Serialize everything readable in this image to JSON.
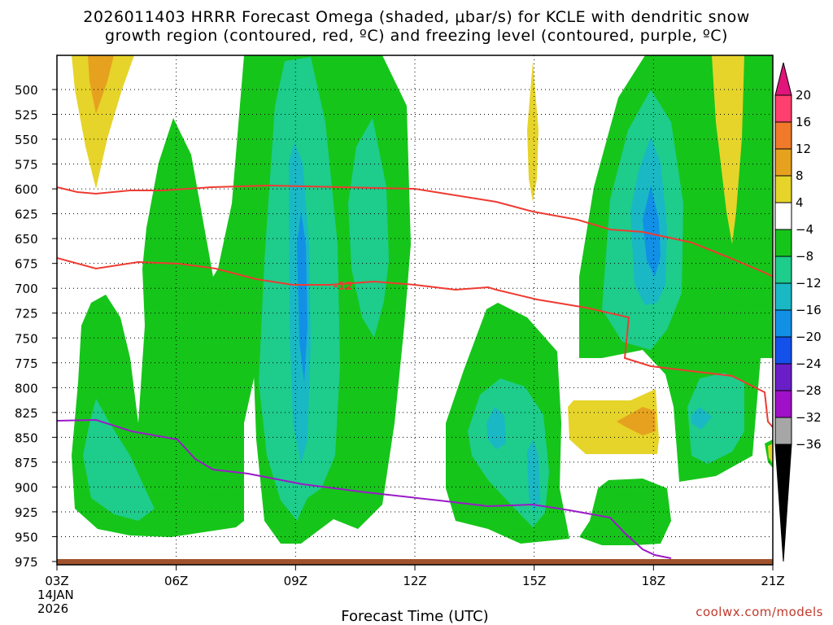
{
  "chart_data": {
    "type": "heatmap",
    "title_line1": "2026011403 HRRR Forecast Omega (shaded, μbar/s) for KCLE with dendritic snow",
    "title_line2": "growth region (contoured, red, ºC) and freezing level (contoured, purple, ºC)",
    "xlabel": "Forecast Time (UTC)",
    "x_ticks": [
      "03Z",
      "06Z",
      "09Z",
      "12Z",
      "15Z",
      "18Z",
      "21Z"
    ],
    "x_tick_hours": [
      3,
      6,
      9,
      12,
      15,
      18,
      21
    ],
    "xlim": [
      3,
      21
    ],
    "date_line1": "14JAN",
    "date_line2": "2026",
    "y_ticks": [
      500,
      525,
      550,
      575,
      600,
      625,
      650,
      675,
      700,
      725,
      750,
      775,
      800,
      825,
      850,
      875,
      900,
      925,
      950,
      975
    ],
    "ylim": [
      475,
      985
    ],
    "contour_label": "-12",
    "colorbar": {
      "labels": [
        "20",
        "16",
        "12",
        "8",
        "4",
        "−4",
        "−8",
        "−12",
        "−16",
        "−20",
        "−24",
        "−28",
        "−32",
        "−36"
      ],
      "colors": [
        "#ff3f6e",
        "#f07a2a",
        "#e6a21e",
        "#e6d42a",
        "#ffffff",
        "#16c51a",
        "#1ecc8c",
        "#1ab8c4",
        "#1290e6",
        "#1450ea",
        "#6a1ec8",
        "#a010c8",
        "#a6a6a6"
      ],
      "top_arrow_color": "#e0147a",
      "bottom_arrow_color": "#000000"
    },
    "ground_color": "#a0522d",
    "credit": "coolwx.com/models"
  }
}
